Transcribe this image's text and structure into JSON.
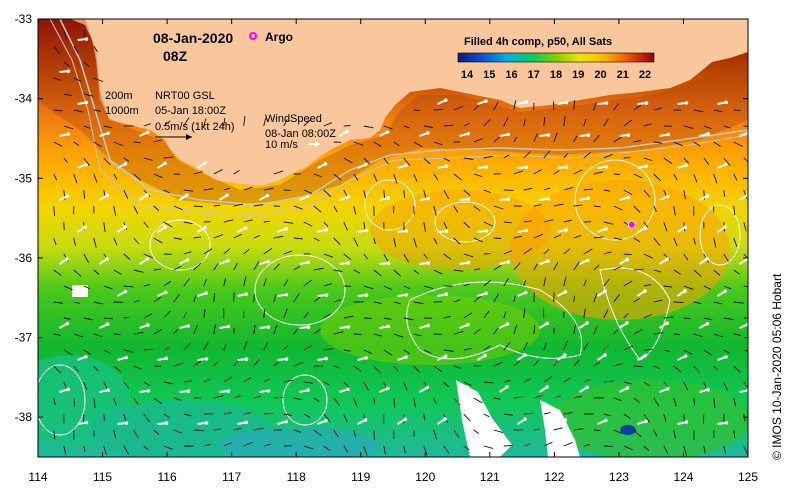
{
  "map": {
    "date_label": "08-Jan-2020",
    "time_label": "08Z",
    "argo_label": "Argo",
    "legend_title": "Filled 4h comp, p50, All Sats",
    "colorbar_ticks": [
      "14",
      "15",
      "16",
      "17",
      "18",
      "19",
      "20",
      "21",
      "22"
    ],
    "depth_labels": [
      "200m",
      "1000m"
    ],
    "current_title": "NRT00 GSL",
    "current_time": "05-Jan 18:00Z",
    "current_scale": "0.5m/s (1kt 24h)",
    "wind_title": "WindSpeed",
    "wind_time": "08-Jan 08:00Z",
    "wind_scale": "10 m/s",
    "credit": "© IMOS 10-Jan-2020 05:06 Hobart",
    "x_axis_labels": [
      "114",
      "115",
      "116",
      "117",
      "118",
      "119",
      "120",
      "121",
      "122",
      "123",
      "124",
      "125"
    ],
    "y_axis_labels": [
      "-33",
      "-34",
      "-35",
      "-36",
      "-37",
      "-38"
    ],
    "lon_range": [
      114,
      125
    ],
    "lat_range": [
      -38.5,
      -33
    ],
    "argo_float": {
      "lon": 123.2,
      "lat": -35.58
    },
    "colors": {
      "land": "#f9c79b",
      "argo_marker": "#ff00ff",
      "sst_scale": [
        "#0a1a7e",
        "#0d4fd0",
        "#00b0e8",
        "#00d060",
        "#7fd000",
        "#e8e800",
        "#ffb400",
        "#f05000",
        "#b80000",
        "#7a0000"
      ]
    }
  }
}
